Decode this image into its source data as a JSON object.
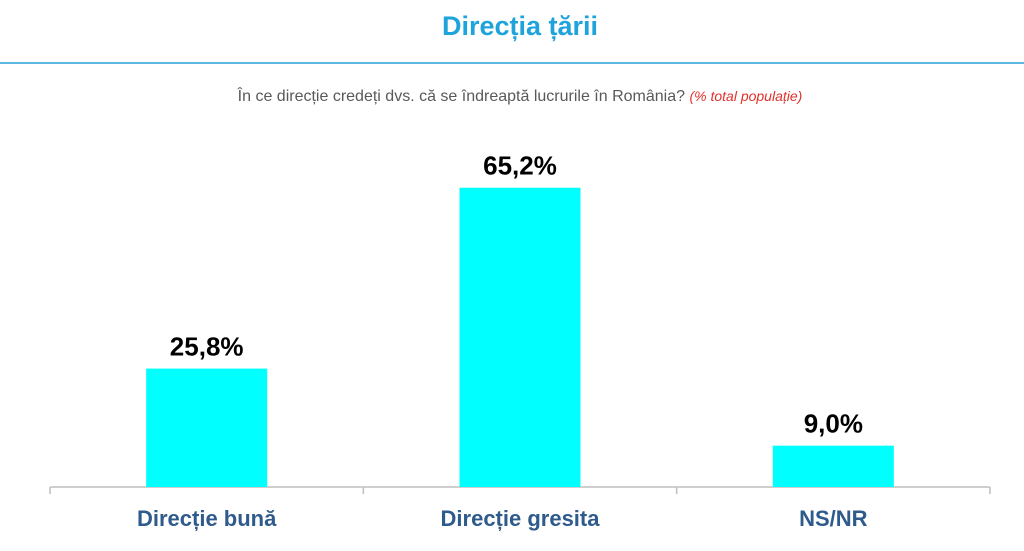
{
  "chart_data": {
    "type": "bar",
    "title": "Direcția țării",
    "subtitle": "În ce direcție credeți dvs. că se îndreaptă lucrurile în România?",
    "note": "(% total populație)",
    "categories": [
      "Direcție bună",
      "Direcție gresita",
      "NS/NR"
    ],
    "values": [
      25.8,
      65.2,
      9.0
    ],
    "value_labels": [
      "25,8%",
      "65,2%",
      "9,0%"
    ],
    "color": "#00ffff"
  }
}
